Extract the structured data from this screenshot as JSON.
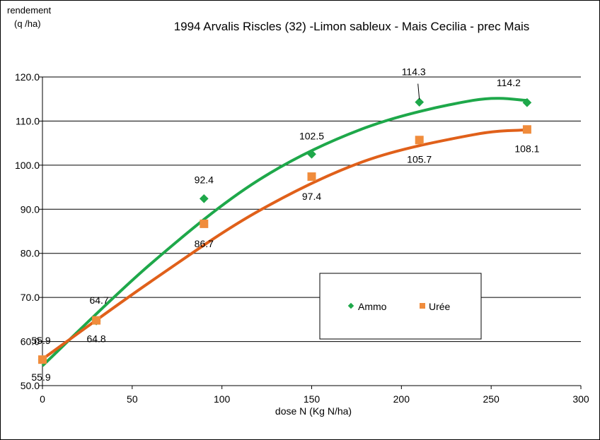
{
  "chart_data": {
    "type": "scatter",
    "title": "1994 Arvalis Riscles (32) -Limon sableux  - Mais Cecilia - prec Mais",
    "ylabel_line1": "rendement",
    "ylabel_line2": "(q /ha)",
    "xlabel": "dose N   (Kg N/ha)",
    "xlim": [
      0,
      300
    ],
    "ylim": [
      50,
      120
    ],
    "xticks": [
      0,
      50,
      100,
      150,
      200,
      250,
      300
    ],
    "yticks": [
      "50.0",
      "60.0",
      "70.0",
      "80.0",
      "90.0",
      "100.0",
      "110.0",
      "120.0"
    ],
    "grid": "horizontal",
    "legend_position": "center-right",
    "series": [
      {
        "name": "Ammo",
        "marker": "diamond",
        "color": "#1ea84a",
        "line_color": "#1ea84a",
        "x": [
          0,
          30,
          90,
          150,
          210,
          270
        ],
        "y": [
          55.9,
          64.7,
          92.4,
          102.5,
          114.3,
          114.2
        ],
        "labels": [
          "55.9",
          "64.7",
          "92.4",
          "102.5",
          "114.3",
          "114.2"
        ],
        "fit": {
          "x": [
            0,
            60,
            120,
            180,
            240,
            270
          ],
          "y": [
            54.5,
            77.5,
            96.5,
            108.5,
            114.7,
            114.7
          ]
        }
      },
      {
        "name": "Urée",
        "marker": "square",
        "color": "#f08c3c",
        "line_color": "#e0601a",
        "x": [
          0,
          30,
          90,
          150,
          210,
          270
        ],
        "y": [
          55.9,
          64.8,
          86.7,
          97.4,
          105.7,
          108.1
        ],
        "labels": [
          "55.9",
          "64.8",
          "86.7",
          "97.4",
          "105.7",
          "108.1"
        ],
        "fit": {
          "x": [
            0,
            60,
            120,
            180,
            240,
            270
          ],
          "y": [
            56.0,
            73.5,
            89.5,
            101.0,
            106.9,
            108.0
          ]
        }
      }
    ]
  }
}
